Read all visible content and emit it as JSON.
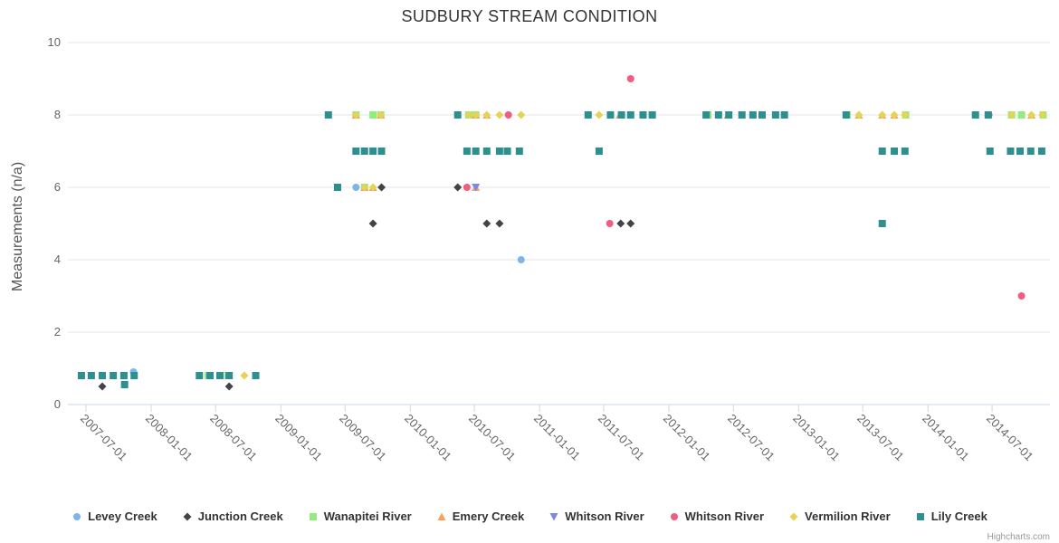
{
  "chart": {
    "title": "SUDBURY STREAM CONDITION",
    "credits": "Highcharts.com",
    "y_axis": {
      "title": "Measurements (n/a)",
      "ticks": [
        0,
        2,
        4,
        6,
        8,
        10
      ]
    },
    "x_axis": {
      "tick_labels": [
        "2007-07-01",
        "2008-01-01",
        "2008-07-01",
        "2009-01-01",
        "2009-07-01",
        "2010-01-01",
        "2010-07-01",
        "2011-01-01",
        "2011-07-01",
        "2012-01-01",
        "2012-07-01",
        "2013-01-01",
        "2013-07-01",
        "2014-01-01",
        "2014-07-01"
      ]
    },
    "styles": {
      "grid_color": "#e6e6e6",
      "axis_line_color": "#ccd6eb",
      "title_color": "#333333",
      "label_color": "#666666",
      "legend_text_color": "#333333",
      "credits_color": "#999999"
    }
  },
  "chart_data": {
    "type": "scatter",
    "title": "SUDBURY STREAM CONDITION",
    "xlabel": "",
    "ylabel": "Measurements (n/a)",
    "ylim": [
      0,
      10
    ],
    "x_type": "date",
    "grid": "horizontal-only",
    "legend_position": "bottom",
    "series": [
      {
        "name": "Levey Creek",
        "symbol": "circle",
        "color": "#7cb5ec",
        "points": [
          [
            "2007-11-12",
            0.9
          ],
          [
            "2009-08-01",
            6
          ],
          [
            "2010-11-10",
            4
          ]
        ]
      },
      {
        "name": "Junction Creek",
        "symbol": "diamond",
        "color": "#434348",
        "points": [
          [
            "2007-08-16",
            0.5
          ],
          [
            "2008-08-08",
            0.5
          ],
          [
            "2009-09-18",
            5
          ],
          [
            "2009-10-12",
            6
          ],
          [
            "2010-05-15",
            6
          ],
          [
            "2010-08-05",
            5
          ],
          [
            "2010-09-10",
            5
          ],
          [
            "2011-08-18",
            5
          ],
          [
            "2011-09-15",
            5
          ]
        ]
      },
      {
        "name": "Wanapitei River",
        "symbol": "square",
        "color": "#90ed7d",
        "points": [
          [
            "2007-08-16",
            0.8
          ],
          [
            "2007-10-16",
            0.8
          ],
          [
            "2008-06-10",
            0.8
          ],
          [
            "2008-08-05",
            0.8
          ],
          [
            "2009-08-01",
            8
          ],
          [
            "2009-09-18",
            8
          ],
          [
            "2009-10-10",
            8
          ],
          [
            "2009-08-25",
            6
          ],
          [
            "2010-06-15",
            8
          ],
          [
            "2010-07-05",
            8
          ],
          [
            "2012-04-20",
            8
          ],
          [
            "2013-05-18",
            8
          ],
          [
            "2013-10-30",
            8
          ],
          [
            "2014-08-25",
            8
          ],
          [
            "2014-09-22",
            8
          ],
          [
            "2014-11-22",
            8
          ]
        ]
      },
      {
        "name": "Emery Creek",
        "symbol": "triangle",
        "color": "#f7a35c",
        "points": [
          [
            "2007-08-16",
            0.8
          ],
          [
            "2009-08-01",
            8
          ],
          [
            "2009-10-10",
            8
          ],
          [
            "2009-08-25",
            6
          ],
          [
            "2009-09-18",
            6
          ],
          [
            "2010-07-05",
            8
          ],
          [
            "2010-08-05",
            8
          ],
          [
            "2010-07-05",
            6
          ],
          [
            "2011-08-15",
            8
          ],
          [
            "2012-06-15",
            8
          ],
          [
            "2013-06-20",
            8
          ],
          [
            "2013-08-25",
            8
          ],
          [
            "2013-09-28",
            8
          ],
          [
            "2014-10-20",
            8
          ]
        ]
      },
      {
        "name": "Whitson River",
        "symbol": "triangle-down",
        "color": "#8085e9",
        "points": [
          [
            "2010-07-05",
            6
          ]
        ]
      },
      {
        "name": "Whitson River",
        "symbol": "circle",
        "color": "#f15c80",
        "points": [
          [
            "2010-06-10",
            6
          ],
          [
            "2010-10-05",
            8
          ],
          [
            "2011-07-18",
            5
          ],
          [
            "2011-09-15",
            9
          ],
          [
            "2014-06-22",
            8
          ],
          [
            "2014-09-22",
            3
          ]
        ]
      },
      {
        "name": "Vermilion River",
        "symbol": "diamond",
        "color": "#e4d354",
        "points": [
          [
            "2007-10-16",
            0.8
          ],
          [
            "2008-09-20",
            0.8
          ],
          [
            "2009-08-01",
            8
          ],
          [
            "2009-10-10",
            8
          ],
          [
            "2009-08-25",
            6
          ],
          [
            "2009-09-18",
            6
          ],
          [
            "2010-06-15",
            8
          ],
          [
            "2010-07-05",
            8
          ],
          [
            "2010-08-05",
            8
          ],
          [
            "2010-09-10",
            8
          ],
          [
            "2010-11-10",
            8
          ],
          [
            "2011-06-18",
            8
          ],
          [
            "2013-06-20",
            8
          ],
          [
            "2013-08-25",
            8
          ],
          [
            "2013-09-28",
            8
          ],
          [
            "2013-10-28",
            8
          ],
          [
            "2014-08-25",
            8
          ],
          [
            "2014-10-20",
            8
          ],
          [
            "2014-11-20",
            8
          ]
        ]
      },
      {
        "name": "Lily Creek",
        "symbol": "square",
        "color": "#2b908f",
        "points": [
          [
            "2007-06-18",
            0.8
          ],
          [
            "2007-07-16",
            0.8
          ],
          [
            "2007-08-16",
            0.8
          ],
          [
            "2007-09-16",
            0.8
          ],
          [
            "2007-10-16",
            0.8
          ],
          [
            "2007-11-14",
            0.8
          ],
          [
            "2007-10-18",
            0.55
          ],
          [
            "2008-05-16",
            0.8
          ],
          [
            "2008-06-15",
            0.8
          ],
          [
            "2008-07-13",
            0.8
          ],
          [
            "2008-08-08",
            0.8
          ],
          [
            "2008-10-22",
            0.8
          ],
          [
            "2009-05-15",
            8
          ],
          [
            "2009-06-10",
            6
          ],
          [
            "2009-08-01",
            7
          ],
          [
            "2009-08-25",
            7
          ],
          [
            "2009-09-18",
            7
          ],
          [
            "2009-10-12",
            7
          ],
          [
            "2010-05-15",
            8
          ],
          [
            "2010-06-10",
            7
          ],
          [
            "2010-07-05",
            7
          ],
          [
            "2010-08-05",
            7
          ],
          [
            "2010-09-10",
            7
          ],
          [
            "2010-10-02",
            7
          ],
          [
            "2010-11-05",
            7
          ],
          [
            "2011-05-18",
            8
          ],
          [
            "2011-06-18",
            7
          ],
          [
            "2011-07-20",
            8
          ],
          [
            "2011-08-20",
            8
          ],
          [
            "2011-09-15",
            8
          ],
          [
            "2011-10-20",
            8
          ],
          [
            "2011-11-15",
            8
          ],
          [
            "2012-04-15",
            8
          ],
          [
            "2012-05-20",
            8
          ],
          [
            "2012-06-18",
            8
          ],
          [
            "2012-07-25",
            8
          ],
          [
            "2012-08-25",
            8
          ],
          [
            "2012-09-20",
            8
          ],
          [
            "2012-10-28",
            8
          ],
          [
            "2012-11-22",
            8
          ],
          [
            "2013-05-15",
            8
          ],
          [
            "2013-08-25",
            7
          ],
          [
            "2013-09-28",
            7
          ],
          [
            "2013-10-28",
            7
          ],
          [
            "2013-08-25",
            5
          ],
          [
            "2014-05-15",
            8
          ],
          [
            "2014-06-20",
            8
          ],
          [
            "2014-06-25",
            7
          ],
          [
            "2014-08-22",
            7
          ],
          [
            "2014-09-18",
            7
          ],
          [
            "2014-10-18",
            7
          ],
          [
            "2014-11-18",
            7
          ]
        ]
      }
    ]
  }
}
